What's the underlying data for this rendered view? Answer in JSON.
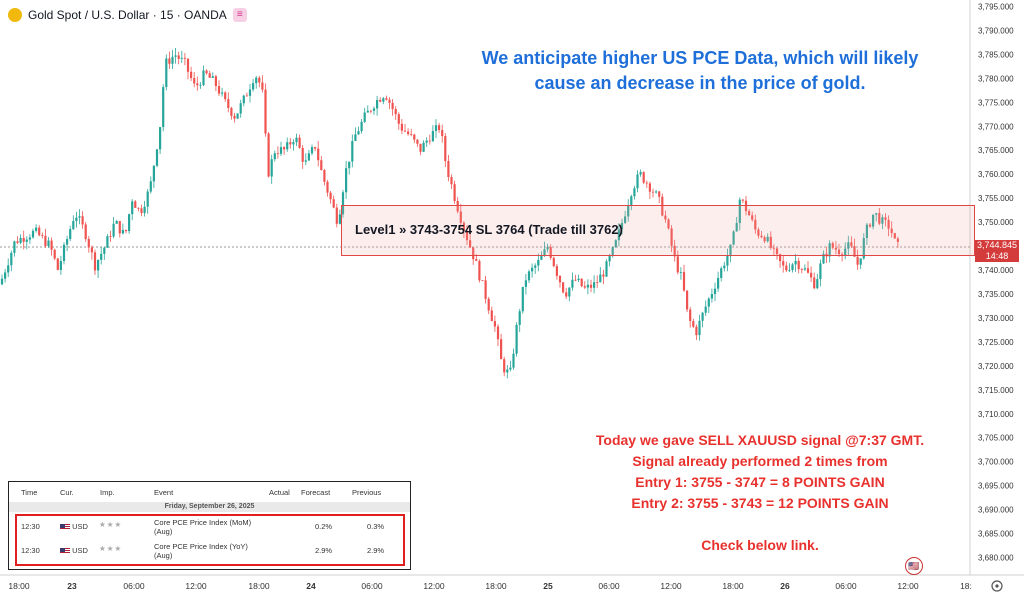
{
  "header": {
    "title": "Gold Spot / U.S. Dollar · 15 · OANDA",
    "menu_icon": "≡"
  },
  "headline": {
    "line1": "We anticipate higher US PCE Data, which will likely",
    "line2": "cause an decrease in the price of gold."
  },
  "level_label": "Level1 » 3743-3754 SL 3764 (Trade till 3762)",
  "price_tag": {
    "price": "3,744.845",
    "timer": "14:48"
  },
  "signal": {
    "line1": "Today we gave SELL XAUUSD signal @7:37 GMT.",
    "line2": "Signal already performed 2 times from",
    "line3": "Entry 1: 3755 - 3747 = 8 POINTS GAIN",
    "line4": "Entry 2: 3755 - 3743 = 12 POINTS GAIN",
    "line5": "Check below link."
  },
  "calendar": {
    "headers": {
      "time": "Time",
      "cur": "Cur.",
      "imp": "Imp.",
      "event": "Event",
      "actual": "Actual",
      "forecast": "Forecast",
      "previous": "Previous"
    },
    "date": "Friday, September 26, 2025",
    "rows": [
      {
        "time": "12:30",
        "cur": "USD",
        "event_line1": "Core PCE Price Index (MoM)",
        "event_line2": "(Aug)",
        "forecast": "0.2%",
        "previous": "0.3%"
      },
      {
        "time": "12:30",
        "cur": "USD",
        "event_line1": "Core PCE Price Index (YoY)",
        "event_line2": "(Aug)",
        "forecast": "2.9%",
        "previous": "2.9%"
      }
    ]
  },
  "colors": {
    "up": "#26a69a",
    "down": "#ef5350",
    "headline": "#1e6fd9",
    "signal": "#e8312d"
  },
  "chart_data": {
    "type": "candlestick",
    "y_ticks": [
      "3,795.000",
      "3,790.000",
      "3,785.000",
      "3,780.000",
      "3,775.000",
      "3,770.000",
      "3,765.000",
      "3,760.000",
      "3,755.000",
      "3,750.000",
      "3,745.000",
      "3,740.000",
      "3,735.000",
      "3,730.000",
      "3,725.000",
      "3,720.000",
      "3,715.000",
      "3,710.000",
      "3,705.000",
      "3,700.000",
      "3,695.000",
      "3,690.000",
      "3,685.000",
      "3,680.000"
    ],
    "ylim": [
      3677,
      3797
    ],
    "x_ticks": [
      "18:00",
      "23",
      "06:00",
      "12:00",
      "18:00",
      "24",
      "06:00",
      "12:00",
      "18:00",
      "25",
      "06:00",
      "12:00",
      "18:00",
      "26",
      "06:00",
      "12:00",
      "18:"
    ],
    "current_price": 3744.845,
    "zone": [
      3743,
      3754
    ],
    "close_path": [
      [
        0,
        3737
      ],
      [
        10,
        3743
      ],
      [
        15,
        3746
      ],
      [
        35,
        3748
      ],
      [
        50,
        3745
      ],
      [
        58,
        3740
      ],
      [
        65,
        3745
      ],
      [
        75,
        3752
      ],
      [
        85,
        3748
      ],
      [
        95,
        3741
      ],
      [
        105,
        3745
      ],
      [
        115,
        3750
      ],
      [
        125,
        3747
      ],
      [
        132,
        3755
      ],
      [
        140,
        3752
      ],
      [
        150,
        3757
      ],
      [
        160,
        3770
      ],
      [
        165,
        3783
      ],
      [
        175,
        3785
      ],
      [
        185,
        3783
      ],
      [
        195,
        3778
      ],
      [
        205,
        3781
      ],
      [
        215,
        3779
      ],
      [
        225,
        3775
      ],
      [
        235,
        3772
      ],
      [
        245,
        3776
      ],
      [
        255,
        3781
      ],
      [
        262,
        3778
      ],
      [
        268,
        3760
      ],
      [
        275,
        3765
      ],
      [
        285,
        3765
      ],
      [
        295,
        3768
      ],
      [
        305,
        3762
      ],
      [
        315,
        3766
      ],
      [
        322,
        3760
      ],
      [
        330,
        3755
      ],
      [
        338,
        3750
      ],
      [
        345,
        3760
      ],
      [
        355,
        3768
      ],
      [
        365,
        3772
      ],
      [
        375,
        3775
      ],
      [
        385,
        3777
      ],
      [
        392,
        3774
      ],
      [
        400,
        3770
      ],
      [
        410,
        3768
      ],
      [
        420,
        3765
      ],
      [
        430,
        3768
      ],
      [
        440,
        3770
      ],
      [
        446,
        3762
      ],
      [
        455,
        3755
      ],
      [
        465,
        3748
      ],
      [
        475,
        3742
      ],
      [
        485,
        3735
      ],
      [
        495,
        3728
      ],
      [
        502,
        3720
      ],
      [
        510,
        3718
      ],
      [
        518,
        3730
      ],
      [
        525,
        3738
      ],
      [
        532,
        3740
      ],
      [
        540,
        3742
      ],
      [
        548,
        3745
      ],
      [
        556,
        3740
      ],
      [
        565,
        3735
      ],
      [
        575,
        3738
      ],
      [
        585,
        3736
      ],
      [
        595,
        3737
      ],
      [
        605,
        3740
      ],
      [
        615,
        3745
      ],
      [
        625,
        3752
      ],
      [
        632,
        3757
      ],
      [
        640,
        3760
      ],
      [
        648,
        3758
      ],
      [
        658,
        3755
      ],
      [
        666,
        3750
      ],
      [
        675,
        3742
      ],
      [
        682,
        3738
      ],
      [
        688,
        3730
      ],
      [
        696,
        3727
      ],
      [
        705,
        3732
      ],
      [
        715,
        3737
      ],
      [
        725,
        3742
      ],
      [
        732,
        3745
      ],
      [
        740,
        3755
      ],
      [
        748,
        3752
      ],
      [
        756,
        3748
      ],
      [
        765,
        3747
      ],
      [
        775,
        3743
      ],
      [
        785,
        3740
      ],
      [
        795,
        3742
      ],
      [
        805,
        3740
      ],
      [
        815,
        3737
      ],
      [
        822,
        3742
      ],
      [
        830,
        3745
      ],
      [
        840,
        3744
      ],
      [
        850,
        3745
      ],
      [
        858,
        3741
      ],
      [
        866,
        3748
      ],
      [
        874,
        3752
      ],
      [
        882,
        3750
      ],
      [
        890,
        3749
      ],
      [
        896,
        3745
      ],
      [
        900,
        3744.8
      ]
    ]
  }
}
